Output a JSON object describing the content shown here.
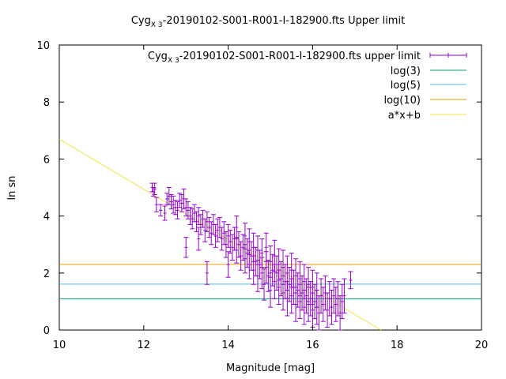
{
  "chart_data": {
    "type": "scatter",
    "title": {
      "prefix": "Cyg",
      "subscript": "X 3",
      "suffix": "-20190102-S001-R001-I-182900.fts Upper limit"
    },
    "xlabel": "Magnitude [mag]",
    "ylabel": "ln sn",
    "xlim": [
      10,
      20
    ],
    "ylim": [
      0,
      10
    ],
    "xticks": [
      10,
      12,
      14,
      16,
      18,
      20
    ],
    "yticks": [
      0,
      2,
      4,
      6,
      8,
      10
    ],
    "grid": false,
    "legend_placement": "top-right",
    "series": [
      {
        "name_prefix": "Cyg",
        "name_subscript": "X 3",
        "name_suffix": "-20190102-S001-R001-I-182900.fts upper limit",
        "kind": "errorbar",
        "color": "#9400d3",
        "points": [
          [
            12.2,
            5.0,
            0.15
          ],
          [
            12.23,
            4.85,
            0.15
          ],
          [
            12.26,
            4.95,
            0.2
          ],
          [
            12.3,
            4.4,
            0.25
          ],
          [
            12.4,
            4.2,
            0.2
          ],
          [
            12.5,
            4.1,
            0.25
          ],
          [
            12.55,
            4.6,
            0.2
          ],
          [
            12.6,
            4.7,
            0.3
          ],
          [
            12.65,
            4.5,
            0.25
          ],
          [
            12.7,
            4.4,
            0.3
          ],
          [
            12.75,
            4.3,
            0.25
          ],
          [
            12.8,
            4.2,
            0.3
          ],
          [
            12.85,
            4.55,
            0.25
          ],
          [
            12.9,
            4.45,
            0.3
          ],
          [
            12.95,
            4.6,
            0.35
          ],
          [
            13.0,
            4.3,
            0.3
          ],
          [
            13.0,
            2.9,
            0.35
          ],
          [
            13.05,
            4.2,
            0.3
          ],
          [
            13.1,
            4.0,
            0.3
          ],
          [
            13.15,
            3.9,
            0.35
          ],
          [
            13.2,
            4.1,
            0.3
          ],
          [
            13.25,
            3.8,
            0.35
          ],
          [
            13.3,
            4.0,
            0.3
          ],
          [
            13.3,
            3.2,
            0.4
          ],
          [
            13.35,
            3.7,
            0.35
          ],
          [
            13.4,
            3.9,
            0.3
          ],
          [
            13.45,
            3.5,
            0.4
          ],
          [
            13.5,
            3.8,
            0.35
          ],
          [
            13.5,
            2.0,
            0.4
          ],
          [
            13.55,
            3.6,
            0.35
          ],
          [
            13.6,
            3.4,
            0.4
          ],
          [
            13.65,
            3.7,
            0.35
          ],
          [
            13.7,
            3.3,
            0.4
          ],
          [
            13.75,
            3.5,
            0.4
          ],
          [
            13.8,
            3.6,
            0.35
          ],
          [
            13.85,
            3.2,
            0.4
          ],
          [
            13.9,
            3.4,
            0.4
          ],
          [
            13.95,
            3.0,
            0.45
          ],
          [
            14.0,
            3.3,
            0.4
          ],
          [
            14.0,
            2.3,
            0.45
          ],
          [
            14.05,
            3.1,
            0.4
          ],
          [
            14.1,
            2.9,
            0.45
          ],
          [
            14.15,
            3.2,
            0.4
          ],
          [
            14.2,
            2.8,
            0.45
          ],
          [
            14.2,
            3.6,
            0.4
          ],
          [
            14.25,
            3.0,
            0.45
          ],
          [
            14.3,
            2.6,
            0.5
          ],
          [
            14.35,
            2.9,
            0.45
          ],
          [
            14.4,
            2.5,
            0.5
          ],
          [
            14.4,
            3.3,
            0.45
          ],
          [
            14.45,
            2.7,
            0.5
          ],
          [
            14.5,
            2.3,
            0.5
          ],
          [
            14.5,
            3.1,
            0.45
          ],
          [
            14.55,
            2.6,
            0.5
          ],
          [
            14.6,
            2.1,
            0.5
          ],
          [
            14.6,
            2.9,
            0.5
          ],
          [
            14.65,
            2.4,
            0.5
          ],
          [
            14.7,
            1.9,
            0.55
          ],
          [
            14.7,
            2.8,
            0.5
          ],
          [
            14.75,
            2.3,
            0.5
          ],
          [
            14.8,
            2.0,
            0.55
          ],
          [
            14.8,
            2.7,
            0.5
          ],
          [
            14.85,
            1.6,
            0.55
          ],
          [
            14.9,
            2.2,
            0.55
          ],
          [
            14.9,
            2.9,
            0.5
          ],
          [
            14.95,
            1.9,
            0.55
          ],
          [
            15.0,
            2.4,
            0.55
          ],
          [
            15.0,
            1.4,
            0.6
          ],
          [
            15.05,
            2.1,
            0.55
          ],
          [
            15.1,
            1.7,
            0.6
          ],
          [
            15.1,
            2.6,
            0.55
          ],
          [
            15.15,
            2.0,
            0.6
          ],
          [
            15.2,
            1.5,
            0.6
          ],
          [
            15.2,
            2.3,
            0.55
          ],
          [
            15.25,
            1.8,
            0.6
          ],
          [
            15.3,
            1.3,
            0.6
          ],
          [
            15.3,
            2.2,
            0.6
          ],
          [
            15.35,
            1.7,
            0.6
          ],
          [
            15.4,
            1.1,
            0.6
          ],
          [
            15.4,
            2.0,
            0.6
          ],
          [
            15.45,
            1.6,
            0.6
          ],
          [
            15.5,
            1.2,
            0.6
          ],
          [
            15.5,
            2.1,
            0.6
          ],
          [
            15.55,
            1.5,
            0.6
          ],
          [
            15.6,
            0.9,
            0.6
          ],
          [
            15.6,
            1.9,
            0.6
          ],
          [
            15.65,
            1.4,
            0.6
          ],
          [
            15.7,
            1.0,
            0.6
          ],
          [
            15.7,
            1.8,
            0.6
          ],
          [
            15.75,
            1.3,
            0.6
          ],
          [
            15.8,
            0.8,
            0.6
          ],
          [
            15.8,
            1.7,
            0.6
          ],
          [
            15.85,
            1.2,
            0.6
          ],
          [
            15.9,
            0.9,
            0.6
          ],
          [
            15.9,
            1.6,
            0.6
          ],
          [
            15.95,
            1.1,
            0.6
          ],
          [
            16.0,
            0.7,
            0.6
          ],
          [
            16.0,
            1.5,
            0.6
          ],
          [
            16.05,
            1.0,
            0.6
          ],
          [
            16.1,
            0.8,
            0.6
          ],
          [
            16.1,
            1.4,
            0.6
          ],
          [
            16.15,
            0.6,
            0.6
          ],
          [
            16.2,
            1.2,
            0.6
          ],
          [
            16.25,
            0.9,
            0.6
          ],
          [
            16.3,
            1.3,
            0.6
          ],
          [
            16.35,
            0.7,
            0.6
          ],
          [
            16.4,
            1.1,
            0.6
          ],
          [
            16.45,
            0.8,
            0.6
          ],
          [
            16.5,
            1.2,
            0.6
          ],
          [
            16.55,
            0.9,
            0.6
          ],
          [
            16.6,
            1.1,
            0.6
          ],
          [
            16.65,
            0.6,
            0.6
          ],
          [
            16.7,
            1.0,
            0.6
          ],
          [
            16.75,
            1.2,
            0.6
          ],
          [
            16.9,
            1.75,
            0.3
          ]
        ]
      },
      {
        "name": "log(3)",
        "kind": "hline",
        "y": 1.0986,
        "color": "#009e73"
      },
      {
        "name": "log(5)",
        "kind": "hline",
        "y": 1.6094,
        "color": "#56b4e9"
      },
      {
        "name": "log(10)",
        "kind": "hline",
        "y": 2.3026,
        "color": "#e69f00"
      },
      {
        "name": "a*x+b",
        "kind": "fit",
        "x": [
          10,
          17.62
        ],
        "y": [
          6.7,
          0
        ],
        "color": "#f0e442"
      }
    ]
  }
}
